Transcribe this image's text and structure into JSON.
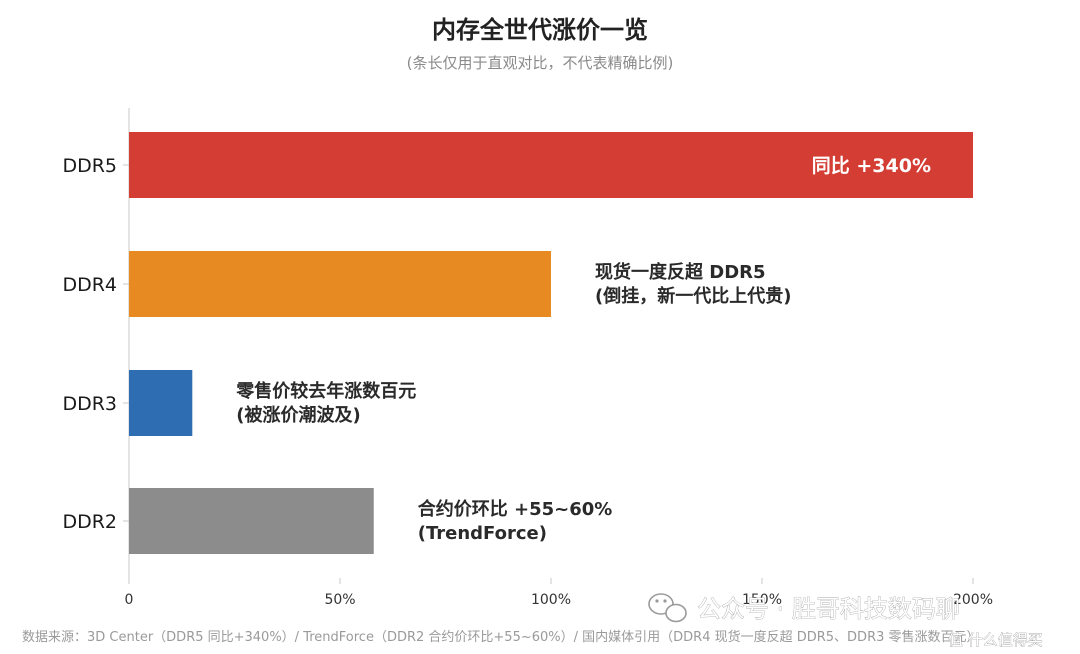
{
  "chart_data": {
    "type": "bar",
    "orientation": "horizontal",
    "title": "内存全世代涨价一览",
    "subtitle": "(条长仅用于直观对比，不代表精确比例)",
    "categories": [
      "DDR5",
      "DDR4",
      "DDR3",
      "DDR2"
    ],
    "values": [
      200,
      100,
      15,
      58
    ],
    "xlim": [
      0,
      200
    ],
    "x_ticks": [
      0,
      50,
      100,
      150,
      200
    ],
    "x_tick_labels": [
      "0",
      "50%",
      "100%",
      "150%",
      "200%"
    ],
    "xlabel": "",
    "ylabel": "",
    "grid": false,
    "colors": [
      "#d43d33",
      "#e88a22",
      "#2f6db3",
      "#8c8c8c"
    ],
    "annotations": [
      {
        "category": "DDR5",
        "lines": [
          "同比 +340%"
        ],
        "placement": "inside"
      },
      {
        "category": "DDR4",
        "lines": [
          "现货一度反超 DDR5",
          "(倒挂，新一代比上代贵)"
        ],
        "placement": "outside"
      },
      {
        "category": "DDR3",
        "lines": [
          "零售价较去年涨数百元",
          "(被涨价潮波及)"
        ],
        "placement": "outside"
      },
      {
        "category": "DDR2",
        "lines": [
          "合约价环比 +55~60%",
          "(TrendForce)"
        ],
        "placement": "outside"
      }
    ],
    "source_note": "数据来源：3D Center（DDR5 同比+340%）/ TrendForce（DDR2 合约价环比+55~60%）/ 国内媒体引用（DDR4 现货一度反超 DDR5、DDR3 零售涨数百元）"
  },
  "watermark": {
    "text": "公众号 · 胜哥科技数码聊",
    "icon": "wechat-icon",
    "secondary_text": "值 什么值得买"
  }
}
